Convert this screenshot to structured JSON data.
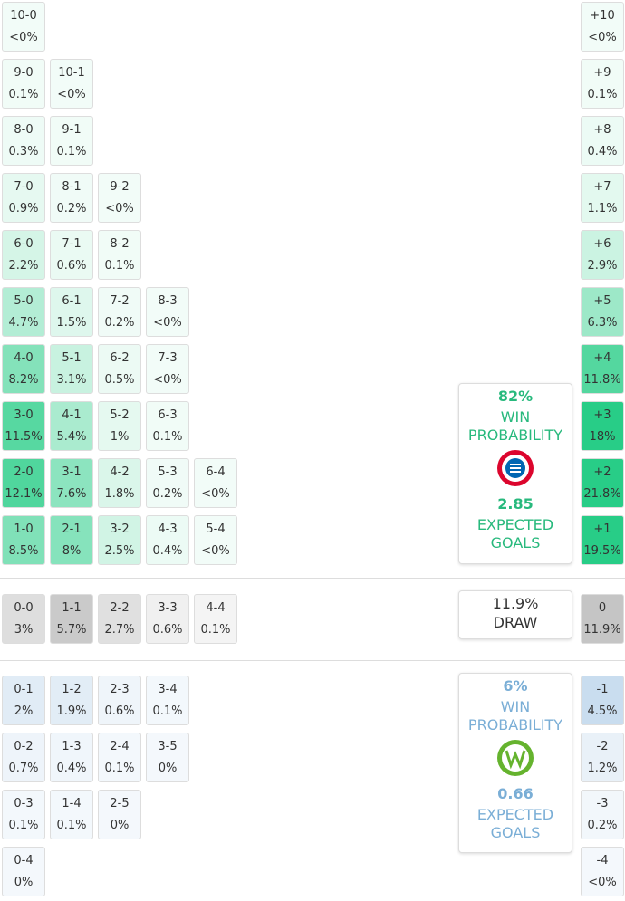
{
  "home_rows": [
    [
      [
        "10-0",
        "<0%"
      ]
    ],
    [
      [
        "9-0",
        "0.1%"
      ],
      [
        "10-1",
        "<0%"
      ]
    ],
    [
      [
        "8-0",
        "0.3%"
      ],
      [
        "9-1",
        "0.1%"
      ]
    ],
    [
      [
        "7-0",
        "0.9%"
      ],
      [
        "8-1",
        "0.2%"
      ],
      [
        "9-2",
        "<0%"
      ]
    ],
    [
      [
        "6-0",
        "2.2%"
      ],
      [
        "7-1",
        "0.6%"
      ],
      [
        "8-2",
        "0.1%"
      ]
    ],
    [
      [
        "5-0",
        "4.7%"
      ],
      [
        "6-1",
        "1.5%"
      ],
      [
        "7-2",
        "0.2%"
      ],
      [
        "8-3",
        "<0%"
      ]
    ],
    [
      [
        "4-0",
        "8.2%"
      ],
      [
        "5-1",
        "3.1%"
      ],
      [
        "6-2",
        "0.5%"
      ],
      [
        "7-3",
        "<0%"
      ]
    ],
    [
      [
        "3-0",
        "11.5%"
      ],
      [
        "4-1",
        "5.4%"
      ],
      [
        "5-2",
        "1%"
      ],
      [
        "6-3",
        "0.1%"
      ]
    ],
    [
      [
        "2-0",
        "12.1%"
      ],
      [
        "3-1",
        "7.6%"
      ],
      [
        "4-2",
        "1.8%"
      ],
      [
        "5-3",
        "0.2%"
      ],
      [
        "6-4",
        "<0%"
      ]
    ],
    [
      [
        "1-0",
        "8.5%"
      ],
      [
        "2-1",
        "8%"
      ],
      [
        "3-2",
        "2.5%"
      ],
      [
        "4-3",
        "0.4%"
      ],
      [
        "5-4",
        "<0%"
      ]
    ]
  ],
  "home_diffs": [
    [
      "+10",
      "<0%"
    ],
    [
      "+9",
      "0.1%"
    ],
    [
      "+8",
      "0.4%"
    ],
    [
      "+7",
      "1.1%"
    ],
    [
      "+6",
      "2.9%"
    ],
    [
      "+5",
      "6.3%"
    ],
    [
      "+4",
      "11.8%"
    ],
    [
      "+3",
      "18%"
    ],
    [
      "+2",
      "21.8%"
    ],
    [
      "+1",
      "19.5%"
    ]
  ],
  "draw_row": [
    [
      "0-0",
      "3%"
    ],
    [
      "1-1",
      "5.7%"
    ],
    [
      "2-2",
      "2.7%"
    ],
    [
      "3-3",
      "0.6%"
    ],
    [
      "4-4",
      "0.1%"
    ]
  ],
  "draw_diff": [
    "0",
    "11.9%"
  ],
  "away_rows": [
    [
      [
        "0-1",
        "2%"
      ],
      [
        "1-2",
        "1.9%"
      ],
      [
        "2-3",
        "0.6%"
      ],
      [
        "3-4",
        "0.1%"
      ]
    ],
    [
      [
        "0-2",
        "0.7%"
      ],
      [
        "1-3",
        "0.4%"
      ],
      [
        "2-4",
        "0.1%"
      ],
      [
        "3-5",
        "0%"
      ]
    ],
    [
      [
        "0-3",
        "0.1%"
      ],
      [
        "1-4",
        "0.1%"
      ],
      [
        "2-5",
        "0%"
      ]
    ],
    [
      [
        "0-4",
        "0%"
      ]
    ]
  ],
  "away_diffs": [
    [
      "-1",
      "4.5%"
    ],
    [
      "-2",
      "1.2%"
    ],
    [
      "-3",
      "0.2%"
    ],
    [
      "-4",
      "<0%"
    ]
  ],
  "home_card": {
    "win": "82%",
    "win_label": "WIN PROBABILITY",
    "xg": "2.85",
    "xg_label": "EXPECTED GOALS"
  },
  "draw_card": {
    "value": "11.9%",
    "label": "DRAW"
  },
  "away_card": {
    "win": "6%",
    "win_label": "WIN PROBABILITY",
    "xg": "0.66",
    "xg_label": "EXPECTED GOALS"
  }
}
